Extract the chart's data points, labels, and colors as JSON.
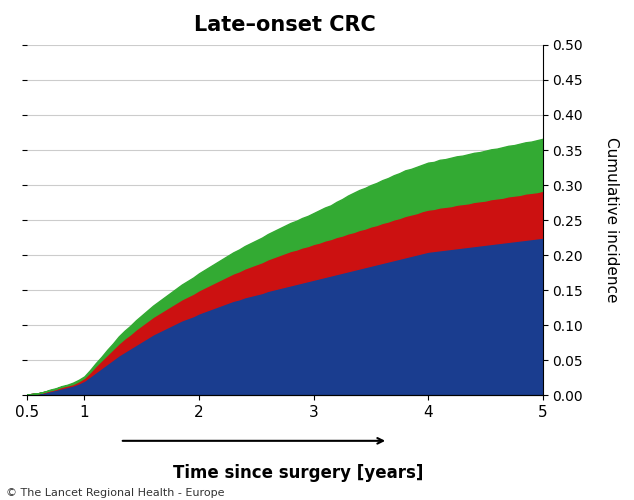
{
  "title": "Late–onset CRC",
  "xlabel": "Time since surgery [years]",
  "ylabel": "Cumulative incidence",
  "xlim": [
    0.5,
    5.0
  ],
  "ylim": [
    0.0,
    0.5
  ],
  "yticks": [
    0.0,
    0.05,
    0.1,
    0.15,
    0.2,
    0.25,
    0.3,
    0.35,
    0.4,
    0.45,
    0.5
  ],
  "xticks": [
    0.5,
    1,
    2,
    3,
    4,
    5
  ],
  "background_color": "#ffffff",
  "grid_color": "#cccccc",
  "color_blue": "#1a3d8f",
  "color_red": "#cc1111",
  "color_green": "#33aa33",
  "footnote": "© The Lancet Regional Health - Europe",
  "x": [
    0.5,
    0.55,
    0.6,
    0.65,
    0.7,
    0.75,
    0.8,
    0.85,
    0.9,
    0.95,
    1.0,
    1.05,
    1.1,
    1.15,
    1.2,
    1.25,
    1.3,
    1.35,
    1.4,
    1.45,
    1.5,
    1.55,
    1.6,
    1.65,
    1.7,
    1.75,
    1.8,
    1.85,
    1.9,
    1.95,
    2.0,
    2.05,
    2.1,
    2.15,
    2.2,
    2.25,
    2.3,
    2.35,
    2.4,
    2.45,
    2.5,
    2.55,
    2.6,
    2.65,
    2.7,
    2.75,
    2.8,
    2.85,
    2.9,
    2.95,
    3.0,
    3.05,
    3.1,
    3.15,
    3.2,
    3.25,
    3.3,
    3.35,
    3.4,
    3.45,
    3.5,
    3.55,
    3.6,
    3.65,
    3.7,
    3.75,
    3.8,
    3.85,
    3.9,
    3.95,
    4.0,
    4.05,
    4.1,
    4.15,
    4.2,
    4.25,
    4.3,
    4.35,
    4.4,
    4.45,
    4.5,
    4.55,
    4.6,
    4.65,
    4.7,
    4.75,
    4.8,
    4.85,
    4.9,
    4.95,
    5.0
  ],
  "blue": [
    0.001,
    0.002,
    0.003,
    0.004,
    0.006,
    0.008,
    0.01,
    0.012,
    0.014,
    0.017,
    0.021,
    0.027,
    0.033,
    0.039,
    0.045,
    0.051,
    0.057,
    0.062,
    0.067,
    0.072,
    0.077,
    0.082,
    0.087,
    0.091,
    0.095,
    0.099,
    0.103,
    0.107,
    0.11,
    0.113,
    0.117,
    0.12,
    0.123,
    0.126,
    0.129,
    0.132,
    0.135,
    0.137,
    0.14,
    0.142,
    0.144,
    0.146,
    0.149,
    0.151,
    0.153,
    0.155,
    0.157,
    0.159,
    0.161,
    0.163,
    0.165,
    0.167,
    0.169,
    0.171,
    0.173,
    0.175,
    0.177,
    0.179,
    0.181,
    0.183,
    0.185,
    0.187,
    0.189,
    0.191,
    0.193,
    0.195,
    0.197,
    0.199,
    0.201,
    0.203,
    0.205,
    0.206,
    0.207,
    0.208,
    0.209,
    0.21,
    0.211,
    0.212,
    0.213,
    0.214,
    0.215,
    0.216,
    0.217,
    0.218,
    0.219,
    0.22,
    0.221,
    0.222,
    0.223,
    0.224,
    0.225
  ],
  "red": [
    0.0,
    0.0,
    0.0,
    0.001,
    0.001,
    0.001,
    0.002,
    0.002,
    0.002,
    0.003,
    0.004,
    0.006,
    0.009,
    0.011,
    0.013,
    0.015,
    0.017,
    0.019,
    0.02,
    0.022,
    0.023,
    0.024,
    0.025,
    0.026,
    0.027,
    0.028,
    0.029,
    0.03,
    0.031,
    0.032,
    0.033,
    0.034,
    0.035,
    0.036,
    0.037,
    0.038,
    0.039,
    0.04,
    0.041,
    0.042,
    0.043,
    0.044,
    0.045,
    0.046,
    0.047,
    0.048,
    0.049,
    0.049,
    0.05,
    0.05,
    0.051,
    0.051,
    0.052,
    0.052,
    0.053,
    0.053,
    0.054,
    0.054,
    0.055,
    0.055,
    0.056,
    0.056,
    0.057,
    0.057,
    0.058,
    0.058,
    0.059,
    0.059,
    0.059,
    0.06,
    0.06,
    0.06,
    0.061,
    0.061,
    0.061,
    0.062,
    0.062,
    0.062,
    0.063,
    0.063,
    0.063,
    0.064,
    0.064,
    0.064,
    0.065,
    0.065,
    0.065,
    0.066,
    0.066,
    0.066,
    0.067
  ],
  "green": [
    0.0,
    0.0,
    0.0,
    0.0,
    0.001,
    0.001,
    0.001,
    0.001,
    0.002,
    0.002,
    0.002,
    0.003,
    0.004,
    0.005,
    0.007,
    0.008,
    0.01,
    0.011,
    0.012,
    0.013,
    0.014,
    0.015,
    0.016,
    0.017,
    0.018,
    0.019,
    0.02,
    0.021,
    0.022,
    0.023,
    0.024,
    0.025,
    0.026,
    0.027,
    0.028,
    0.029,
    0.03,
    0.031,
    0.032,
    0.033,
    0.034,
    0.035,
    0.036,
    0.037,
    0.038,
    0.039,
    0.04,
    0.041,
    0.042,
    0.043,
    0.044,
    0.046,
    0.047,
    0.048,
    0.05,
    0.052,
    0.054,
    0.056,
    0.057,
    0.058,
    0.059,
    0.06,
    0.061,
    0.062,
    0.063,
    0.064,
    0.065,
    0.065,
    0.066,
    0.066,
    0.067,
    0.067,
    0.068,
    0.068,
    0.069,
    0.069,
    0.069,
    0.07,
    0.07,
    0.07,
    0.071,
    0.071,
    0.071,
    0.072,
    0.072,
    0.072,
    0.073,
    0.073,
    0.073,
    0.074,
    0.074
  ]
}
